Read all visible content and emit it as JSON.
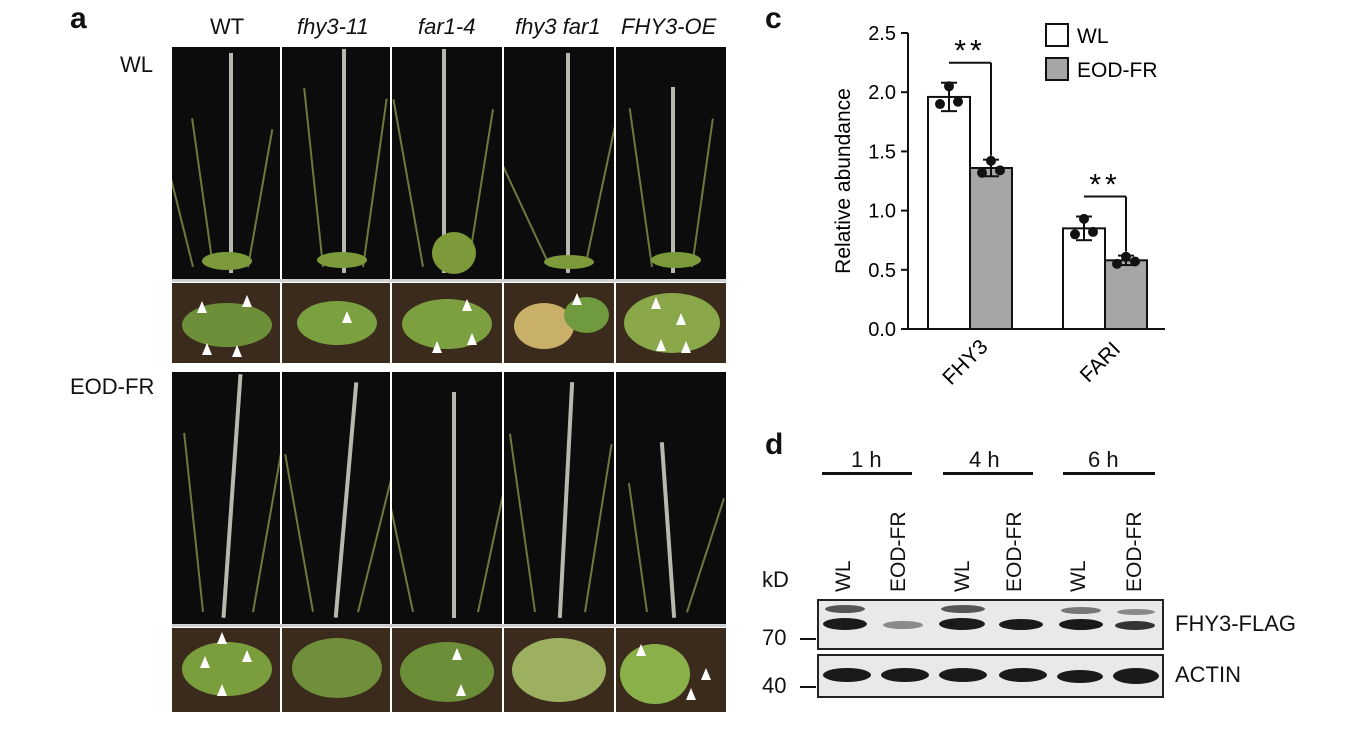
{
  "panel_a": {
    "letter": "a",
    "genotypes": [
      "WT",
      "fhy3-11",
      "far1-4",
      "fhy3 far1",
      "FHY3-OE"
    ],
    "rows": [
      "WL",
      "EOD-FR"
    ]
  },
  "panel_c": {
    "letter": "c",
    "legend": [
      "WL",
      "EOD-FR"
    ],
    "significance": [
      "**",
      "**"
    ]
  },
  "chart_data": {
    "type": "bar",
    "categories": [
      "FHY3",
      "FARI"
    ],
    "series": [
      {
        "name": "WL",
        "values": [
          1.96,
          0.85
        ],
        "errors": [
          0.12,
          0.1
        ],
        "points": [
          [
            1.9,
            2.05,
            1.92
          ],
          [
            0.8,
            0.93,
            0.82
          ]
        ]
      },
      {
        "name": "EOD-FR",
        "values": [
          1.36,
          0.58
        ],
        "errors": [
          0.07,
          0.04
        ],
        "points": [
          [
            1.32,
            1.42,
            1.34
          ],
          [
            0.55,
            0.61,
            0.57
          ]
        ]
      }
    ],
    "ylabel": "Relative abundance",
    "ylim": [
      0,
      2.5
    ],
    "yticks": [
      "0.0",
      "0.5",
      "1.0",
      "1.5",
      "2.0",
      "2.5"
    ],
    "colors": {
      "WL": "#ffffff",
      "EOD-FR": "#a6a6a6"
    }
  },
  "panel_d": {
    "letter": "d",
    "timepoints": [
      "1 h",
      "4 h",
      "6 h"
    ],
    "lanes": [
      "WL",
      "EOD-FR",
      "WL",
      "EOD-FR",
      "WL",
      "EOD-FR"
    ],
    "kd_label": "kD",
    "markers": [
      "70",
      "40"
    ],
    "proteins": [
      "FHY3-FLAG",
      "ACTIN"
    ]
  }
}
